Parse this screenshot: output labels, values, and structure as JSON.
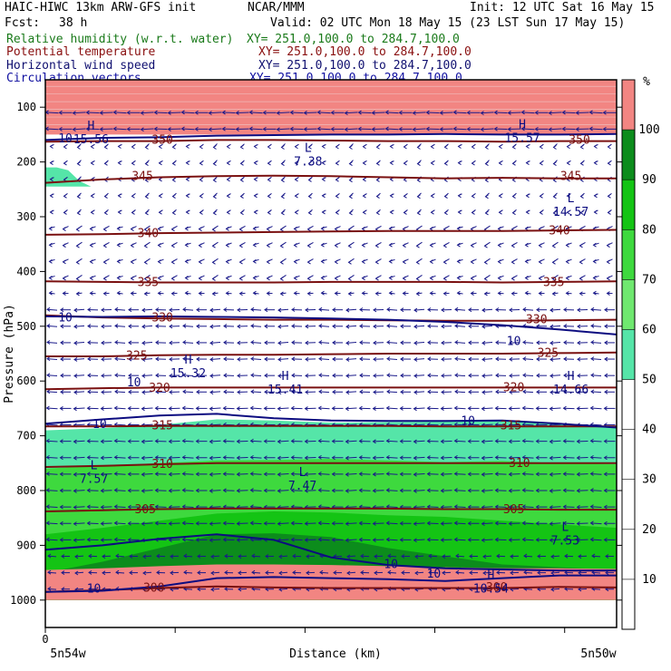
{
  "header": {
    "model": "HAIC-HIWC 13km ARW-GFS init",
    "org": "NCAR/MMM",
    "init": "Init: 12 UTC Sat 16 May 15",
    "fcst_label": "Fcst:",
    "fcst_value": "38 h",
    "valid": "Valid: 02 UTC Mon 18 May 15 (23 LST Sun 17 May 15)",
    "fields": [
      {
        "name": "Relative humidity (w.r.t. water)",
        "xy": "XY= 251.0,100.0 to 284.7,100.0",
        "color": "#1a7a1a"
      },
      {
        "name": "Potential temperature",
        "xy": "XY= 251.0,100.0 to 284.7,100.0",
        "color": "#8a1010"
      },
      {
        "name": "Horizontal wind speed",
        "xy": "XY= 251.0,100.0 to 284.7,100.0",
        "color": "#101070"
      },
      {
        "name": "Circulation vectors",
        "xy": "XY= 251.0,100.0 to 284.7,100.0",
        "color": "#1010a0"
      }
    ]
  },
  "chart_data": {
    "type": "heatmap",
    "ylabel": "Pressure (hPa)",
    "xlabel": "Distance (km)",
    "y_ticks": [
      "100",
      "200",
      "300",
      "400",
      "500",
      "600",
      "700",
      "800",
      "900",
      "1000"
    ],
    "y_range_hPa": [
      50,
      1050
    ],
    "x_range": [
      0,
      1
    ],
    "x_tick_label": "0",
    "x_left_label": "5n54w",
    "x_right_label": "5n50w",
    "colorbar": {
      "unit": "%",
      "bands": [
        {
          "from": 50,
          "to": 60,
          "color": "#55e5a8"
        },
        {
          "from": 60,
          "to": 70,
          "color": "#6fe86f"
        },
        {
          "from": 70,
          "to": 80,
          "color": "#3ed93e"
        },
        {
          "from": 80,
          "to": 90,
          "color": "#14c414"
        },
        {
          "from": 90,
          "to": 100,
          "color": "#0c8c1c"
        },
        {
          "from": 100,
          "to": 110,
          "color": "#f28582"
        }
      ],
      "labels": [
        "100",
        "90",
        "80",
        "70",
        "60",
        "50",
        "40",
        "30",
        "20",
        "10"
      ]
    },
    "theta_isentropes": [
      {
        "level": 345,
        "p": [
          238,
          232,
          228,
          226,
          225,
          226,
          228,
          230,
          229,
          230,
          230
        ]
      },
      {
        "level": 340,
        "p": [
          333,
          332,
          330,
          329,
          328,
          327,
          326,
          326,
          326,
          325,
          324
        ]
      },
      {
        "level": 335,
        "p": [
          418,
          419,
          420,
          420,
          420,
          419,
          419,
          419,
          420,
          419,
          418
        ]
      },
      {
        "level": 330,
        "p": [
          480,
          484,
          486,
          487,
          488,
          488,
          489,
          490,
          490,
          489,
          488
        ]
      },
      {
        "level": 325,
        "p": [
          555,
          555,
          553,
          552,
          552,
          551,
          550,
          550,
          550,
          549,
          548
        ]
      },
      {
        "level": 320,
        "p": [
          615,
          613,
          612,
          612,
          612,
          612,
          612,
          612,
          612,
          612,
          612
        ]
      },
      {
        "level": 315,
        "p": [
          683,
          683,
          682,
          682,
          682,
          682,
          682,
          683,
          683,
          683,
          683
        ]
      },
      {
        "level": 310,
        "p": [
          757,
          755,
          752,
          750,
          750,
          750,
          750,
          750,
          750,
          750,
          750
        ]
      },
      {
        "level": 305,
        "p": [
          838,
          836,
          834,
          833,
          833,
          833,
          833,
          834,
          834,
          835,
          835
        ]
      },
      {
        "level": 300,
        "p": [
          985,
          982,
          978,
          975,
          977,
          978,
          978,
          978,
          978,
          976,
          977
        ]
      },
      {
        "level": 350,
        "p": [
          163,
          162,
          162,
          160,
          160,
          161,
          162,
          162,
          163,
          162,
          162
        ]
      }
    ],
    "theta_labels": [
      {
        "text": "350",
        "x": 0.205,
        "p": 160
      },
      {
        "text": "350",
        "x": 0.935,
        "p": 160
      },
      {
        "text": "345",
        "x": 0.17,
        "p": 226
      },
      {
        "text": "345",
        "x": 0.92,
        "p": 226
      },
      {
        "text": "340",
        "x": 0.18,
        "p": 331
      },
      {
        "text": "340",
        "x": 0.9,
        "p": 326
      },
      {
        "text": "335",
        "x": 0.18,
        "p": 420
      },
      {
        "text": "335",
        "x": 0.89,
        "p": 420
      },
      {
        "text": "330",
        "x": 0.205,
        "p": 485
      },
      {
        "text": "330",
        "x": 0.86,
        "p": 488
      },
      {
        "text": "325",
        "x": 0.16,
        "p": 554
      },
      {
        "text": "325",
        "x": 0.88,
        "p": 549
      },
      {
        "text": "320",
        "x": 0.2,
        "p": 613
      },
      {
        "text": "320",
        "x": 0.82,
        "p": 612
      },
      {
        "text": "315",
        "x": 0.205,
        "p": 682
      },
      {
        "text": "315",
        "x": 0.815,
        "p": 682
      },
      {
        "text": "310",
        "x": 0.205,
        "p": 752
      },
      {
        "text": "310",
        "x": 0.83,
        "p": 750
      },
      {
        "text": "305",
        "x": 0.175,
        "p": 835
      },
      {
        "text": "305",
        "x": 0.82,
        "p": 835
      },
      {
        "text": "300",
        "x": 0.19,
        "p": 978
      },
      {
        "text": "300",
        "x": 0.79,
        "p": 977
      }
    ],
    "wind_isotachs": [
      {
        "level": 10,
        "p": [
          482,
          483,
          482,
          483,
          484,
          486,
          488,
          492,
          498,
          506,
          515
        ]
      },
      {
        "level": 10,
        "p": [
          678,
          670,
          663,
          660,
          668,
          672,
          673,
          673,
          672,
          678,
          685
        ]
      },
      {
        "level": 10,
        "p": [
          908,
          900,
          888,
          880,
          890,
          922,
          936,
          942,
          944,
          946,
          946
        ]
      },
      {
        "level": 10,
        "p": [
          985,
          983,
          975,
          960,
          958,
          960,
          962,
          965,
          960,
          955,
          955
        ]
      },
      {
        "level": 10,
        "p": [
          160,
          156,
          155,
          152,
          151,
          150,
          150,
          149,
          150,
          150,
          149
        ]
      }
    ],
    "wind_labels": [
      {
        "text": "10",
        "x": 0.035,
        "p": 158
      },
      {
        "text": "10",
        "x": 0.035,
        "p": 485
      },
      {
        "text": "10",
        "x": 0.82,
        "p": 528
      },
      {
        "text": "10",
        "x": 0.095,
        "p": 679
      },
      {
        "text": "10",
        "x": 0.74,
        "p": 673
      },
      {
        "text": "10",
        "x": 0.155,
        "p": 603
      },
      {
        "text": "10",
        "x": 0.605,
        "p": 935
      },
      {
        "text": "10",
        "x": 0.68,
        "p": 952
      },
      {
        "text": "10",
        "x": 0.085,
        "p": 980
      }
    ],
    "extrema": [
      {
        "kind": "L",
        "value": "7.38",
        "x": 0.46,
        "p": 188
      },
      {
        "kind": "L",
        "value": "14.57",
        "x": 0.92,
        "p": 280
      },
      {
        "kind": "H",
        "value": "15.32",
        "x": 0.25,
        "p": 575
      },
      {
        "kind": "H",
        "value": "15.41",
        "x": 0.42,
        "p": 605
      },
      {
        "kind": "H",
        "value": "14.66",
        "x": 0.92,
        "p": 605
      },
      {
        "kind": "L",
        "value": "7.57",
        "x": 0.085,
        "p": 768
      },
      {
        "kind": "L",
        "value": "7.47",
        "x": 0.45,
        "p": 780
      },
      {
        "kind": "L",
        "value": "7.53",
        "x": 0.91,
        "p": 880
      },
      {
        "kind": "H",
        "value": "10.54",
        "x": 0.78,
        "p": 968
      },
      {
        "kind": "H",
        "value": "15.56",
        "x": 0.08,
        "p": 148
      },
      {
        "kind": "H",
        "value": "15.57",
        "x": 0.835,
        "p": 145
      }
    ],
    "rh_regions": [
      {
        "level": 50,
        "top": [
          690,
          686,
          680,
          670,
          672,
          676,
          675,
          674,
          672,
          677,
          683
        ],
        "bottom": 1000
      },
      {
        "level": 50,
        "top": [
          210,
          210,
          215,
          235,
          1050,
          1050,
          1050,
          1050,
          1050,
          1050,
          1050
        ],
        "bottom": 245,
        "x_to": 0.2
      },
      {
        "level": 70,
        "top": [
          760,
          755,
          750,
          745,
          744,
          742,
          745,
          748,
          746,
          750,
          752
        ],
        "bottom": 1000
      },
      {
        "level": 80,
        "top": [
          880,
          868,
          855,
          842,
          838,
          840,
          845,
          848,
          855,
          862,
          868
        ],
        "bottom": 1000
      },
      {
        "level": 90,
        "top": [
          950,
          930,
          905,
          880,
          878,
          885,
          905,
          920,
          935,
          940,
          945
        ],
        "bottom": 1000
      },
      {
        "level": 100,
        "top": [
          50,
          50,
          50,
          50,
          50,
          50,
          50,
          50,
          50,
          50,
          50
        ],
        "bottom": 150
      },
      {
        "level": 100,
        "top": [
          945,
          942,
          938,
          935,
          935,
          936,
          938,
          940,
          942,
          942,
          943
        ],
        "bottom": 1000
      }
    ]
  }
}
